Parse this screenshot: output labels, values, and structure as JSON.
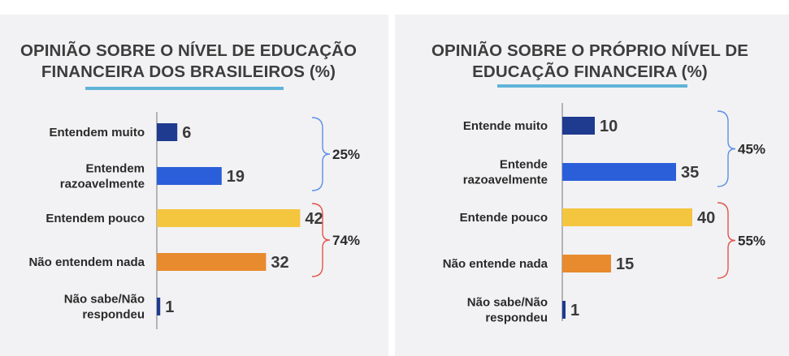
{
  "colors": {
    "dark_blue": "#1f3b8f",
    "blue": "#2b5fd9",
    "yellow": "#f4c53f",
    "orange": "#e88a2e",
    "bracket_blue": "#5b8ee6",
    "bracket_red": "#e2554b",
    "title_underline": "#5fb4d8",
    "axis": "#777777"
  },
  "chart_data": [
    {
      "type": "bar",
      "orientation": "horizontal",
      "title_lines": [
        "OPINIÃO SOBRE O NÍVEL DE EDUCAÇÃO",
        "FINANCEIRA DOS BRASILEIROS (%)"
      ],
      "categories": [
        [
          "Entendem muito"
        ],
        [
          "Entendem",
          "razoavelmente"
        ],
        [
          "Entendem pouco"
        ],
        [
          "Não entendem nada"
        ],
        [
          "Não sabe/Não",
          "respondeu"
        ]
      ],
      "values": [
        6,
        19,
        42,
        32,
        1
      ],
      "bar_colors": [
        "#1f3b8f",
        "#2b5fd9",
        "#f4c53f",
        "#e88a2e",
        "#1f3b8f"
      ],
      "groups": [
        {
          "label": "25%",
          "from": 0,
          "to": 1,
          "color": "#5b8ee6"
        },
        {
          "label": "74%",
          "from": 2,
          "to": 3,
          "color": "#e2554b"
        }
      ]
    },
    {
      "type": "bar",
      "orientation": "horizontal",
      "title_lines": [
        "OPINIÃO SOBRE O PRÓPRIO NÍVEL DE",
        "EDUCAÇÃO FINANCEIRA (%)"
      ],
      "categories": [
        [
          "Entende muito"
        ],
        [
          "Entende",
          "razoavelmente"
        ],
        [
          "Entende pouco"
        ],
        [
          "Não entende nada"
        ],
        [
          "Não sabe/Não",
          "respondeu"
        ]
      ],
      "values": [
        10,
        35,
        40,
        15,
        1
      ],
      "bar_colors": [
        "#1f3b8f",
        "#2b5fd9",
        "#f4c53f",
        "#e88a2e",
        "#1f3b8f"
      ],
      "groups": [
        {
          "label": "45%",
          "from": 0,
          "to": 1,
          "color": "#5b8ee6"
        },
        {
          "label": "55%",
          "from": 2,
          "to": 3,
          "color": "#e2554b"
        }
      ]
    }
  ]
}
